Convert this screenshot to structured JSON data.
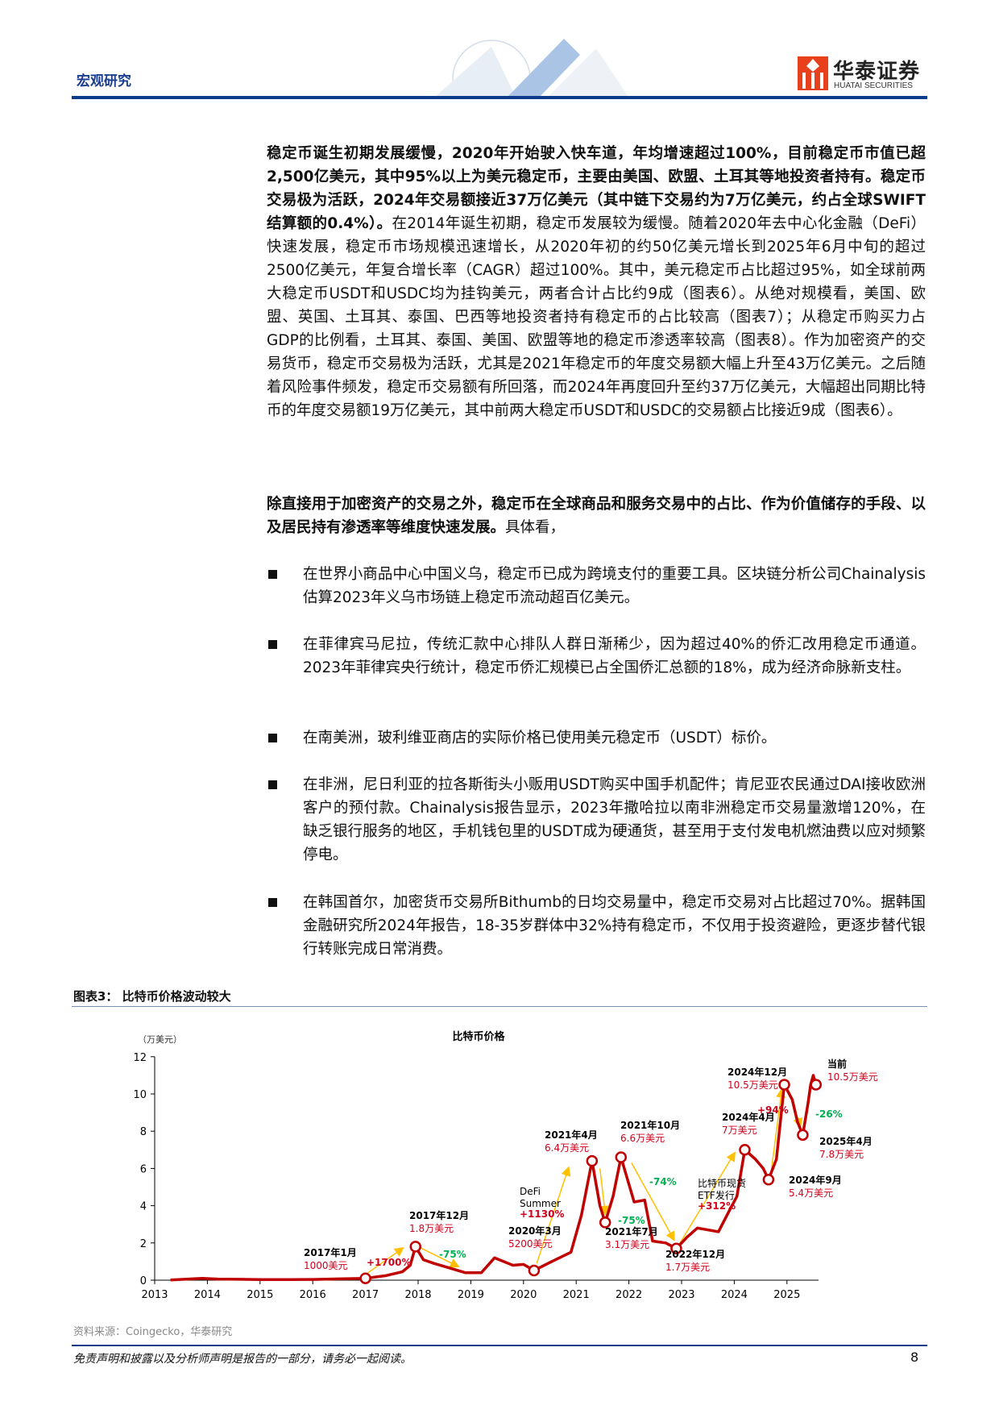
{
  "header": {
    "section": "宏观研究",
    "logo_cn": "华泰证券",
    "logo_en": "HUATAI SECURITIES",
    "accent": "#0b3c8c",
    "logo_red": "#e8401c"
  },
  "body": {
    "p1_bold": "稳定币诞生初期发展缓慢，2020年开始驶入快车道，年均增速超过100%，目前稳定币市值已超2,500亿美元，其中95%以上为美元稳定币，主要由美国、欧盟、土耳其等地投资者持有。稳定币交易极为活跃，2024年交易额接近37万亿美元（其中链下交易约为7万亿美元，约占全球SWIFT结算额的0.4%）。",
    "p1_text": "在2014年诞生初期，稳定币发展较为缓慢。随着2020年去中心化金融（DeFi）快速发展，稳定币市场规模迅速增长，从2020年初的约50亿美元增长到2025年6月中旬的超过2500亿美元，年复合增长率（CAGR）超过100%。其中，美元稳定币占比超过95%，如全球前两大稳定币USDT和USDC均为挂钩美元，两者合计占比约9成（图表6）。从绝对规模看，美国、欧盟、英国、土耳其、泰国、巴西等地投资者持有稳定币的占比较高（图表7）；从稳定币购买力占GDP的比例看，土耳其、泰国、美国、欧盟等地的稳定币渗透率较高（图表8）。作为加密资产的交易货币，稳定币交易极为活跃，尤其是2021年稳定币的年度交易额大幅上升至43万亿美元。之后随着风险事件频发，稳定币交易额有所回落，而2024年再度回升至约37万亿美元，大幅超出同期比特币的年度交易额19万亿美元，其中前两大稳定币USDT和USDC的交易额占比接近9成（图表6）。",
    "p2_bold": "除直接用于加密资产的交易之外，稳定币在全球商品和服务交易中的占比、作为价值储存的手段、以及居民持有渗透率等维度快速发展。",
    "p2_text": "具体看，",
    "bullets": [
      "在世界小商品中心中国义乌，稳定币已成为跨境支付的重要工具。区块链分析公司Chainalysis估算2023年义乌市场链上稳定币流动超百亿美元。",
      "在菲律宾马尼拉，传统汇款中心排队人群日渐稀少，因为超过40%的侨汇改用稳定币通道。2023年菲律宾央行统计，稳定币侨汇规模已占全国侨汇总额的18%，成为经济命脉新支柱。",
      "在南美洲，玻利维亚商店的实际价格已使用美元稳定币（USDT）标价。",
      "在非洲，尼日利亚的拉各斯街头小贩用USDT购买中国手机配件；肯尼亚农民通过DAI接收欧洲客户的预付款。Chainalysis报告显示，2023年撒哈拉以南非洲稳定币交易量激增120%，在缺乏银行服务的地区，手机钱包里的USDT成为硬通货，甚至用于支付发电机燃油费以应对频繁停电。",
      "在韩国首尔，加密货币交易所Bithumb的日均交易量中，稳定币交易对占比超过70%。据韩国金融研究所2024年报告，18-35岁群体中32%持有稳定币，不仅用于投资避险，更逐步替代银行转账完成日常消费。"
    ]
  },
  "figure": {
    "title": "图表3：  比特币价格波动较大",
    "source": "资料来源：Coingecko，华泰研究"
  },
  "chart_data": {
    "type": "line",
    "title": "比特币价格",
    "ylabel": "（万美元）",
    "xlim": [
      2013,
      2025.6
    ],
    "ylim": [
      0,
      12
    ],
    "yticks": [
      "0",
      "2",
      "4",
      "6",
      "8",
      "10",
      "12"
    ],
    "xticks": [
      "2013",
      "2014",
      "2015",
      "2016",
      "2017",
      "2018",
      "2019",
      "2020",
      "2021",
      "2022",
      "2023",
      "2024",
      "2025"
    ],
    "line_color": "#c00000",
    "arrow_color": "#ffc000",
    "up_color": "#d0021b",
    "down_color": "#00b050",
    "series": [
      [
        2013.3,
        0.01
      ],
      [
        2013.9,
        0.1
      ],
      [
        2014.2,
        0.06
      ],
      [
        2014.6,
        0.05
      ],
      [
        2015.0,
        0.03
      ],
      [
        2015.6,
        0.03
      ],
      [
        2016.0,
        0.04
      ],
      [
        2016.5,
        0.07
      ],
      [
        2017.0,
        0.1
      ],
      [
        2017.4,
        0.25
      ],
      [
        2017.7,
        0.45
      ],
      [
        2017.85,
        0.8
      ],
      [
        2017.95,
        1.8
      ],
      [
        2018.1,
        1.1
      ],
      [
        2018.3,
        0.9
      ],
      [
        2018.6,
        0.65
      ],
      [
        2018.9,
        0.4
      ],
      [
        2019.2,
        0.4
      ],
      [
        2019.45,
        1.2
      ],
      [
        2019.8,
        0.8
      ],
      [
        2020.0,
        0.85
      ],
      [
        2020.2,
        0.52
      ],
      [
        2020.5,
        0.95
      ],
      [
        2020.9,
        1.5
      ],
      [
        2021.1,
        3.5
      ],
      [
        2021.3,
        6.4
      ],
      [
        2021.45,
        4.0
      ],
      [
        2021.55,
        3.1
      ],
      [
        2021.7,
        4.5
      ],
      [
        2021.85,
        6.6
      ],
      [
        2022.1,
        4.2
      ],
      [
        2022.3,
        4.3
      ],
      [
        2022.45,
        2.1
      ],
      [
        2022.7,
        2.0
      ],
      [
        2022.9,
        1.7
      ],
      [
        2023.1,
        2.3
      ],
      [
        2023.3,
        2.8
      ],
      [
        2023.7,
        2.6
      ],
      [
        2023.9,
        3.7
      ],
      [
        2024.05,
        4.5
      ],
      [
        2024.2,
        7.0
      ],
      [
        2024.4,
        6.5
      ],
      [
        2024.55,
        6.0
      ],
      [
        2024.65,
        5.4
      ],
      [
        2024.8,
        6.5
      ],
      [
        2024.95,
        10.5
      ],
      [
        2025.1,
        9.7
      ],
      [
        2025.2,
        8.5
      ],
      [
        2025.3,
        7.8
      ],
      [
        2025.4,
        9.5
      ],
      [
        2025.45,
        10.5
      ],
      [
        2025.5,
        11.0
      ],
      [
        2025.55,
        10.5
      ]
    ],
    "points": [
      {
        "date": "2017年1月",
        "value": "1000美元",
        "x": 2017.0,
        "y": 0.1
      },
      {
        "date": "2017年12月",
        "value": "1.8万美元",
        "x": 2017.95,
        "y": 1.8
      },
      {
        "date": "2020年3月",
        "value": "5200美元",
        "x": 2020.2,
        "y": 0.52
      },
      {
        "date": "2021年4月",
        "value": "6.4万美元",
        "x": 2021.3,
        "y": 6.4
      },
      {
        "date": "2021年7月",
        "value": "3.1万美元",
        "x": 2021.55,
        "y": 3.1
      },
      {
        "date": "2021年10月",
        "value": "6.6万美元",
        "x": 2021.85,
        "y": 6.6
      },
      {
        "date": "2022年12月",
        "value": "1.7万美元",
        "x": 2022.9,
        "y": 1.7
      },
      {
        "date": "2024年4月",
        "value": "7万美元",
        "x": 2024.2,
        "y": 7.0
      },
      {
        "date": "2024年9月",
        "value": "5.4万美元",
        "x": 2024.65,
        "y": 5.4
      },
      {
        "date": "2024年12月",
        "value": "10.5万美元",
        "x": 2024.95,
        "y": 10.5
      },
      {
        "date": "2025年4月",
        "value": "7.8万美元",
        "x": 2025.3,
        "y": 7.8
      },
      {
        "date": "当前",
        "value": "10.5万美元",
        "x": 2025.55,
        "y": 10.5
      }
    ],
    "changes": [
      {
        "label": "+1700%",
        "dir": "up"
      },
      {
        "label": "-75%",
        "dir": "down"
      },
      {
        "note": "DeFi Summer",
        "label": "+1130%",
        "dir": "up"
      },
      {
        "label": "-75%",
        "dir": "down"
      },
      {
        "label": "-74%",
        "dir": "down"
      },
      {
        "note": "比特币现货 ETF发行",
        "label": "+312%",
        "dir": "up"
      },
      {
        "label": "+94%",
        "dir": "up"
      },
      {
        "label": "-26%",
        "dir": "down"
      }
    ]
  },
  "footer": {
    "disclaimer": "免责声明和披露以及分析师声明是报告的一部分，请务必一起阅读。",
    "page": "8"
  }
}
